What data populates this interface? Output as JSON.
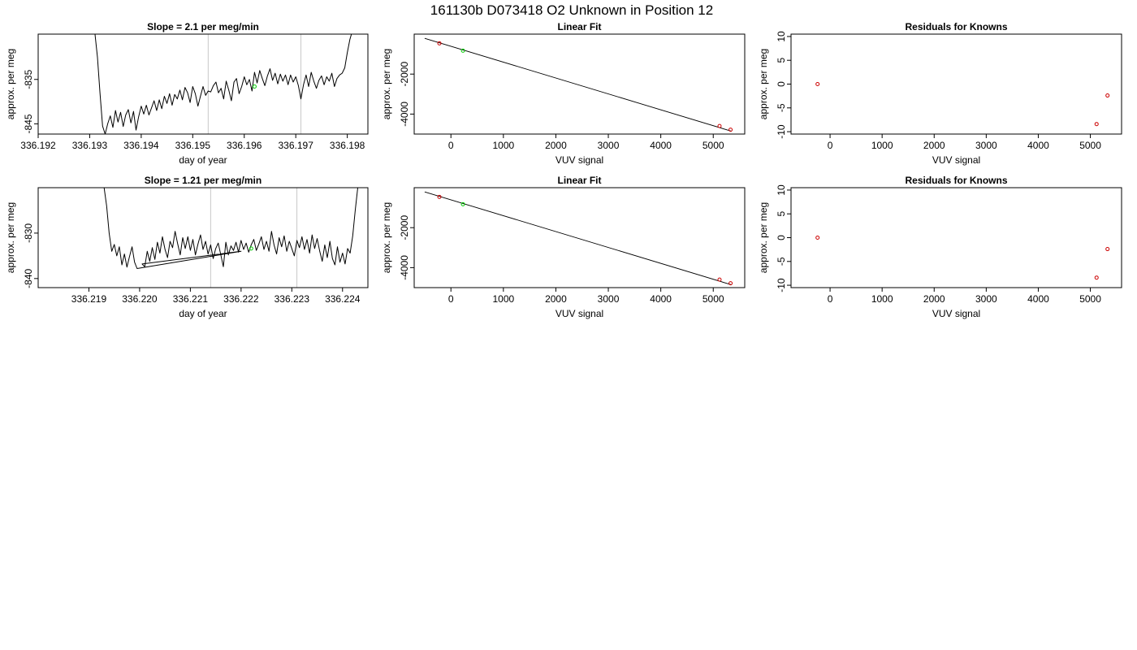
{
  "figure": {
    "title": "161130b     D073418   O2 Unknown in Position  12"
  },
  "chart_data": [
    {
      "type": "line",
      "title": "Slope =  2.1  per meg/min",
      "xlabel": "day of year",
      "ylabel": "approx. per meg",
      "xlim": [
        336.192,
        336.1984
      ],
      "ylim": [
        -847.3,
        -824.8
      ],
      "xticks": [
        336.192,
        336.193,
        336.194,
        336.195,
        336.196,
        336.197,
        336.198
      ],
      "xtick_decimals": 3,
      "yticks": [
        -835,
        -845
      ],
      "vlines": [
        336.1953,
        336.1971
      ],
      "series": [
        {
          "style": "line",
          "color": "#000000",
          "x": [
            336.1931,
            336.19315,
            336.1932,
            336.19325,
            336.1933,
            336.19335,
            336.1934,
            336.19345,
            336.1935,
            336.19355,
            336.1936,
            336.19365,
            336.1937,
            336.19375,
            336.1938,
            336.19385,
            336.1939,
            336.19395,
            336.194,
            336.19405,
            336.1941,
            336.19415,
            336.1942,
            336.19425,
            336.1943,
            336.19435,
            336.1944,
            336.19445,
            336.1945,
            336.19455,
            336.1946,
            336.19465,
            336.1947,
            336.19475,
            336.1948,
            336.19485,
            336.1949,
            336.19495,
            336.195,
            336.19505,
            336.1951,
            336.19515,
            336.1952,
            336.19525,
            336.1953,
            336.19535,
            336.1954,
            336.19545,
            336.1955,
            336.19555,
            336.1956,
            336.19565,
            336.1957,
            336.19575,
            336.1958,
            336.19585,
            336.1959,
            336.19595,
            336.196,
            336.19605,
            336.1961,
            336.19615,
            336.1962,
            336.19625,
            336.1963,
            336.19635,
            336.1964,
            336.19645,
            336.1965,
            336.19655,
            336.1966,
            336.19665,
            336.1967,
            336.19675,
            336.1968,
            336.19685,
            336.1969,
            336.19695,
            336.197,
            336.19705,
            336.1971,
            336.19715,
            336.1972,
            336.19725,
            336.1973,
            336.19735,
            336.1974,
            336.19745,
            336.1975,
            336.19755,
            336.1976,
            336.19765,
            336.1977,
            336.19775,
            336.1978,
            336.19785,
            336.1979,
            336.19795,
            336.198,
            336.19805,
            336.1981
          ],
          "y": [
            -824.5,
            -830.0,
            -838.0,
            -845.5,
            -847.3,
            -845.0,
            -843.2,
            -845.8,
            -842.0,
            -844.6,
            -842.4,
            -845.6,
            -843.0,
            -841.8,
            -844.8,
            -842.2,
            -846.4,
            -843.4,
            -841.0,
            -842.8,
            -840.8,
            -843.0,
            -841.4,
            -839.8,
            -842.0,
            -839.6,
            -841.6,
            -838.8,
            -840.4,
            -838.2,
            -840.8,
            -838.4,
            -839.4,
            -837.4,
            -839.6,
            -836.8,
            -838.0,
            -840.2,
            -836.6,
            -838.2,
            -841.0,
            -838.8,
            -836.6,
            -838.6,
            -837.6,
            -837.8,
            -836.4,
            -835.6,
            -838.0,
            -837.0,
            -839.4,
            -835.4,
            -837.4,
            -839.8,
            -835.6,
            -834.8,
            -838.2,
            -836.6,
            -834.4,
            -836.2,
            -835.0,
            -837.6,
            -833.4,
            -835.8,
            -833.0,
            -834.8,
            -836.4,
            -834.2,
            -832.6,
            -835.2,
            -833.6,
            -836.0,
            -833.8,
            -835.4,
            -834.0,
            -836.2,
            -834.0,
            -835.6,
            -834.4,
            -836.4,
            -839.4,
            -836.2,
            -834.0,
            -836.6,
            -833.4,
            -835.4,
            -837.0,
            -835.2,
            -834.2,
            -836.2,
            -834.4,
            -835.4,
            -833.6,
            -836.6,
            -834.8,
            -834.0,
            -833.6,
            -832.4,
            -829.0,
            -826.0,
            -824.0
          ]
        },
        {
          "style": "point",
          "color": "#00cc00",
          "x": [
            336.1962
          ],
          "y": [
            -836.6
          ]
        }
      ]
    },
    {
      "type": "scatter",
      "title": "Linear Fit",
      "xlabel": "VUV signal",
      "ylabel": "approx. per meg",
      "xlim": [
        -700,
        5600
      ],
      "ylim": [
        -5000,
        0
      ],
      "xticks": [
        0,
        1000,
        2000,
        3000,
        4000,
        5000
      ],
      "yticks": [
        -2000,
        -4000
      ],
      "fit_line": {
        "x": [
          -500,
          5350
        ],
        "y": [
          -210,
          -4860
        ]
      },
      "series": [
        {
          "style": "point",
          "color": "#cc0000",
          "x": [
            -220,
            5120,
            5330
          ],
          "y": [
            -460,
            -4600,
            -4780
          ]
        },
        {
          "style": "point",
          "color": "#00cc00",
          "x": [
            230
          ],
          "y": [
            -830
          ]
        }
      ]
    },
    {
      "type": "scatter",
      "title": "Residuals for Knowns",
      "xlabel": "VUV signal",
      "ylabel": "approx. per meg",
      "xlim": [
        -750,
        5600
      ],
      "ylim": [
        -10.5,
        10.5
      ],
      "xticks": [
        0,
        1000,
        2000,
        3000,
        4000,
        5000
      ],
      "yticks": [
        10,
        5,
        0,
        -5,
        -10
      ],
      "series": [
        {
          "style": "point",
          "color": "#cc0000",
          "x": [
            -240,
            5120,
            5330
          ],
          "y": [
            0.0,
            -8.4,
            -2.4
          ]
        }
      ]
    },
    {
      "type": "line",
      "title": "Slope =  1.21  per meg/min",
      "xlabel": "day of year",
      "ylabel": "approx. per meg",
      "xlim": [
        336.218,
        336.2245
      ],
      "ylim": [
        -842.0,
        -820.0
      ],
      "xticks": [
        336.219,
        336.22,
        336.221,
        336.222,
        336.223,
        336.224
      ],
      "xtick_decimals": 3,
      "yticks": [
        -830,
        -840
      ],
      "vlines": [
        336.2214,
        336.2231
      ],
      "series": [
        {
          "style": "line",
          "color": "#000000",
          "x": [
            336.2193,
            336.21935,
            336.2194,
            336.21945,
            336.2195,
            336.21955,
            336.2196,
            336.21965,
            336.2197,
            336.21975,
            336.2198,
            336.21985,
            336.2199,
            336.21995,
            336.222,
            336.22005,
            336.2201,
            336.22015,
            336.2202,
            336.22025,
            336.2203,
            336.22035,
            336.2204,
            336.22045,
            336.2205,
            336.22055,
            336.2206,
            336.22065,
            336.2207,
            336.22075,
            336.2208,
            336.22085,
            336.2209,
            336.22095,
            336.221,
            336.22105,
            336.2211,
            336.22115,
            336.2212,
            336.22125,
            336.2213,
            336.22135,
            336.2214,
            336.22145,
            336.2215,
            336.22155,
            336.2216,
            336.22165,
            336.2217,
            336.22175,
            336.2218,
            336.22185,
            336.2219,
            336.22195,
            336.222,
            336.22205,
            336.2221,
            336.22215,
            336.2222,
            336.22225,
            336.2223,
            336.22235,
            336.2224,
            336.22245,
            336.2225,
            336.22255,
            336.2226,
            336.22265,
            336.2227,
            336.22275,
            336.2228,
            336.22285,
            336.2229,
            336.22295,
            336.223,
            336.22305,
            336.2231,
            336.22315,
            336.2232,
            336.22325,
            336.2233,
            336.22335,
            336.2234,
            336.22345,
            336.2235,
            336.22355,
            336.2236,
            336.22365,
            336.2237,
            336.22375,
            336.2238,
            336.22385,
            336.2239,
            336.22395,
            336.224,
            336.22405,
            336.2241,
            336.22415,
            336.2242,
            336.22425,
            336.2243
          ],
          "y": [
            -820.0,
            -824.0,
            -830.0,
            -834.0,
            -832.5,
            -835.0,
            -833.0,
            -837.0,
            -834.6,
            -837.5,
            -835.2,
            -833.0,
            -836.4,
            -837.8,
            -834.0,
            -836.8,
            -837.4,
            -834.0,
            -836.2,
            -833.2,
            -835.8,
            -832.0,
            -834.4,
            -830.8,
            -833.6,
            -835.4,
            -831.8,
            -833.2,
            -829.6,
            -832.4,
            -834.8,
            -831.0,
            -833.4,
            -830.8,
            -833.8,
            -831.4,
            -834.8,
            -832.4,
            -830.4,
            -833.6,
            -831.8,
            -834.6,
            -832.6,
            -835.6,
            -833.4,
            -832.2,
            -834.8,
            -837.4,
            -832.0,
            -834.8,
            -832.8,
            -833.8,
            -832.0,
            -834.2,
            -831.6,
            -833.6,
            -832.2,
            -834.2,
            -832.6,
            -831.4,
            -833.8,
            -832.4,
            -830.8,
            -833.6,
            -831.8,
            -834.0,
            -829.6,
            -832.6,
            -834.6,
            -831.0,
            -833.0,
            -830.6,
            -834.0,
            -831.8,
            -833.4,
            -835.0,
            -831.6,
            -833.2,
            -830.8,
            -833.6,
            -831.4,
            -834.4,
            -830.4,
            -833.4,
            -831.2,
            -834.0,
            -836.2,
            -832.6,
            -835.4,
            -831.8,
            -835.6,
            -837.0,
            -833.0,
            -836.4,
            -834.4,
            -836.8,
            -833.4,
            -834.4,
            -830.6,
            -825.0,
            -820.0
          ]
        },
        {
          "style": "point",
          "color": "#00cc00",
          "x": [
            336.2222
          ],
          "y": [
            -833.4
          ]
        }
      ]
    },
    {
      "type": "scatter",
      "title": "Linear Fit",
      "xlabel": "VUV signal",
      "ylabel": "approx. per meg",
      "xlim": [
        -700,
        5600
      ],
      "ylim": [
        -5000,
        0
      ],
      "xticks": [
        0,
        1000,
        2000,
        3000,
        4000,
        5000
      ],
      "yticks": [
        -2000,
        -4000
      ],
      "fit_line": {
        "x": [
          -500,
          5350
        ],
        "y": [
          -210,
          -4860
        ]
      },
      "series": [
        {
          "style": "point",
          "color": "#cc0000",
          "x": [
            -220,
            5120,
            5330
          ],
          "y": [
            -460,
            -4600,
            -4780
          ]
        },
        {
          "style": "point",
          "color": "#00cc00",
          "x": [
            230
          ],
          "y": [
            -830
          ]
        }
      ]
    },
    {
      "type": "scatter",
      "title": "Residuals for Knowns",
      "xlabel": "VUV signal",
      "ylabel": "approx. per meg",
      "xlim": [
        -750,
        5600
      ],
      "ylim": [
        -10.5,
        10.5
      ],
      "xticks": [
        0,
        1000,
        2000,
        3000,
        4000,
        5000
      ],
      "yticks": [
        10,
        5,
        0,
        -5,
        -10
      ],
      "series": [
        {
          "style": "point",
          "color": "#cc0000",
          "x": [
            -240,
            5120,
            5330
          ],
          "y": [
            0.0,
            -8.4,
            -2.4
          ]
        }
      ]
    }
  ]
}
